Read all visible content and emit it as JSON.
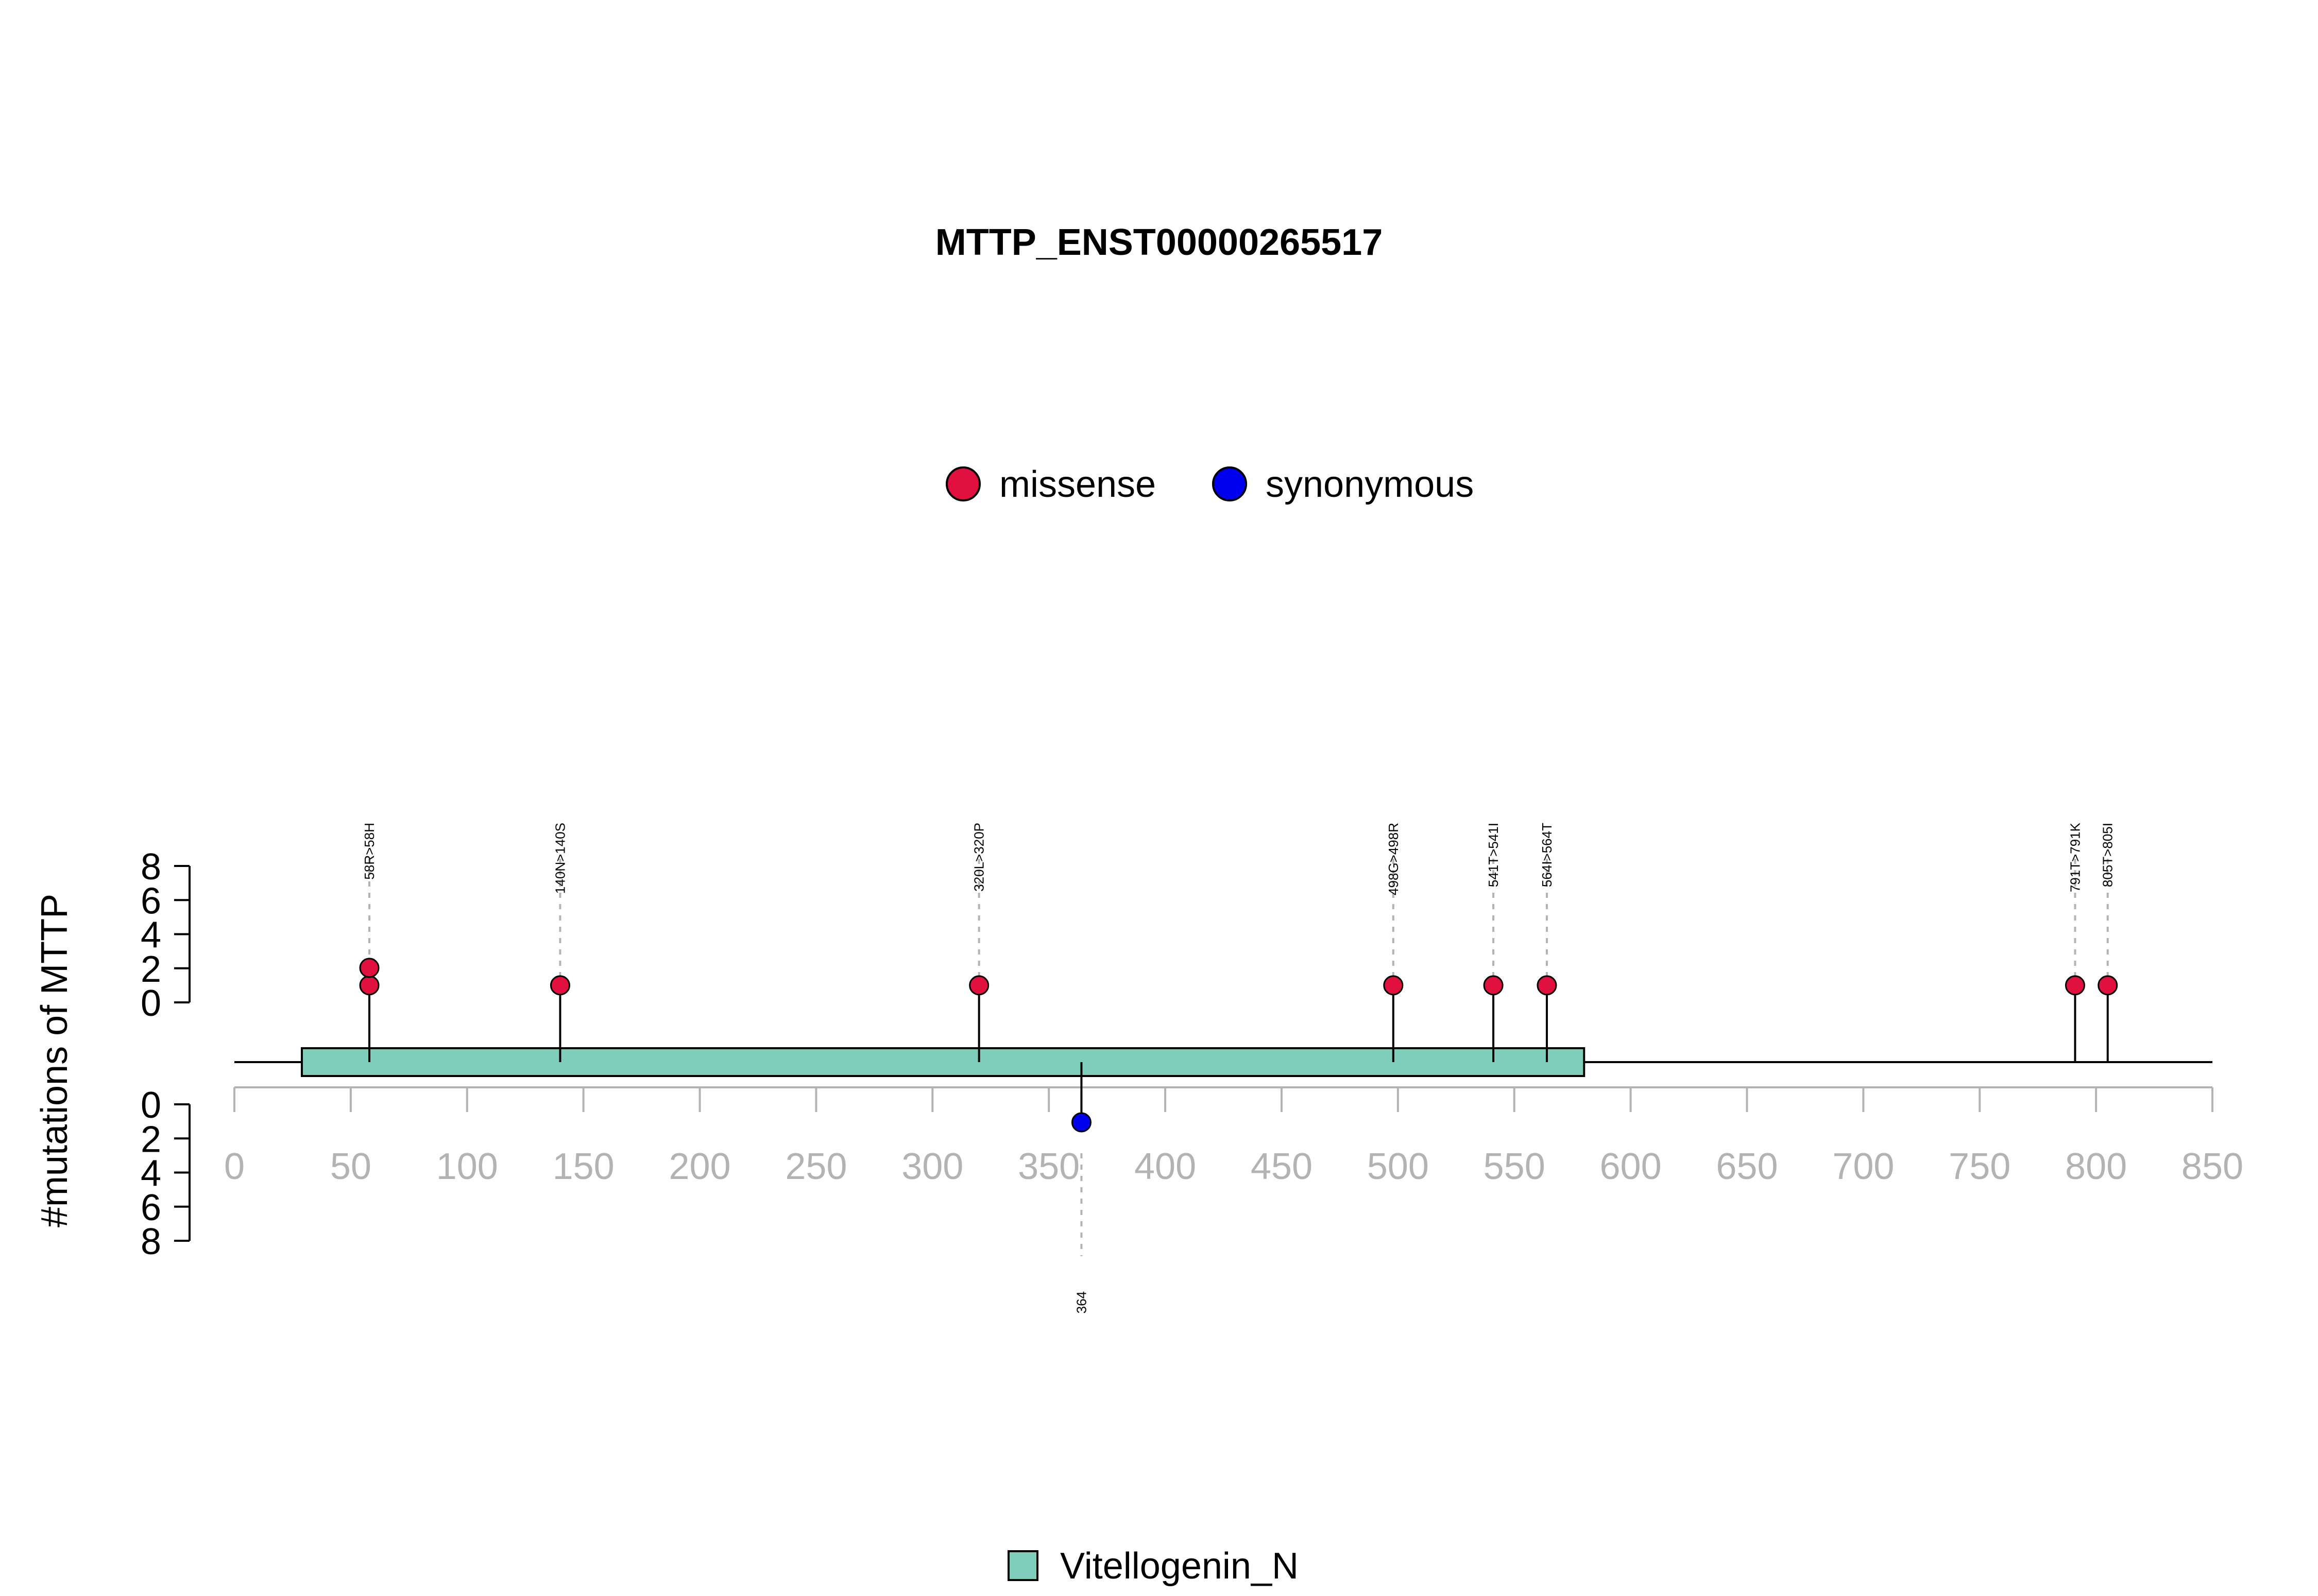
{
  "chart_data": {
    "type": "lollipop",
    "title": "MTTP_ENST00000265517",
    "ylabel": "#mutations of MTTP",
    "xlim": [
      0,
      850
    ],
    "x_ticks": [
      0,
      50,
      100,
      150,
      200,
      250,
      300,
      350,
      400,
      450,
      500,
      550,
      600,
      650,
      700,
      750,
      800,
      850
    ],
    "y_ticks_top": [
      0,
      2,
      4,
      6,
      8
    ],
    "y_ticks_bottom": [
      0,
      2,
      4,
      6,
      8
    ],
    "ylim": [
      0,
      8
    ],
    "protein_length": 850,
    "legend": [
      {
        "name": "missense",
        "color": "#e0103f"
      },
      {
        "name": "synonymous",
        "color": "#0000ee"
      }
    ],
    "domains": [
      {
        "name": "Vitellogenin_N",
        "start": 29,
        "end": 580,
        "color": "#7fcdbb"
      }
    ],
    "mutations_top": [
      {
        "position": 58,
        "label": "58R>58H",
        "count": 2,
        "type": "missense"
      },
      {
        "position": 140,
        "label": "140N>140S",
        "count": 1,
        "type": "missense"
      },
      {
        "position": 320,
        "label": "320L>320P",
        "count": 1,
        "type": "missense"
      },
      {
        "position": 498,
        "label": "498G>498R",
        "count": 1,
        "type": "missense"
      },
      {
        "position": 541,
        "label": "541T>541I",
        "count": 1,
        "type": "missense"
      },
      {
        "position": 564,
        "label": "564I>564T",
        "count": 1,
        "type": "missense"
      },
      {
        "position": 791,
        "label": "791T>791K",
        "count": 1,
        "type": "missense"
      },
      {
        "position": 805,
        "label": "805T>805I",
        "count": 1,
        "type": "missense"
      }
    ],
    "mutations_bottom": [
      {
        "position": 364,
        "label": "364",
        "count": 1,
        "type": "synonymous"
      }
    ]
  }
}
